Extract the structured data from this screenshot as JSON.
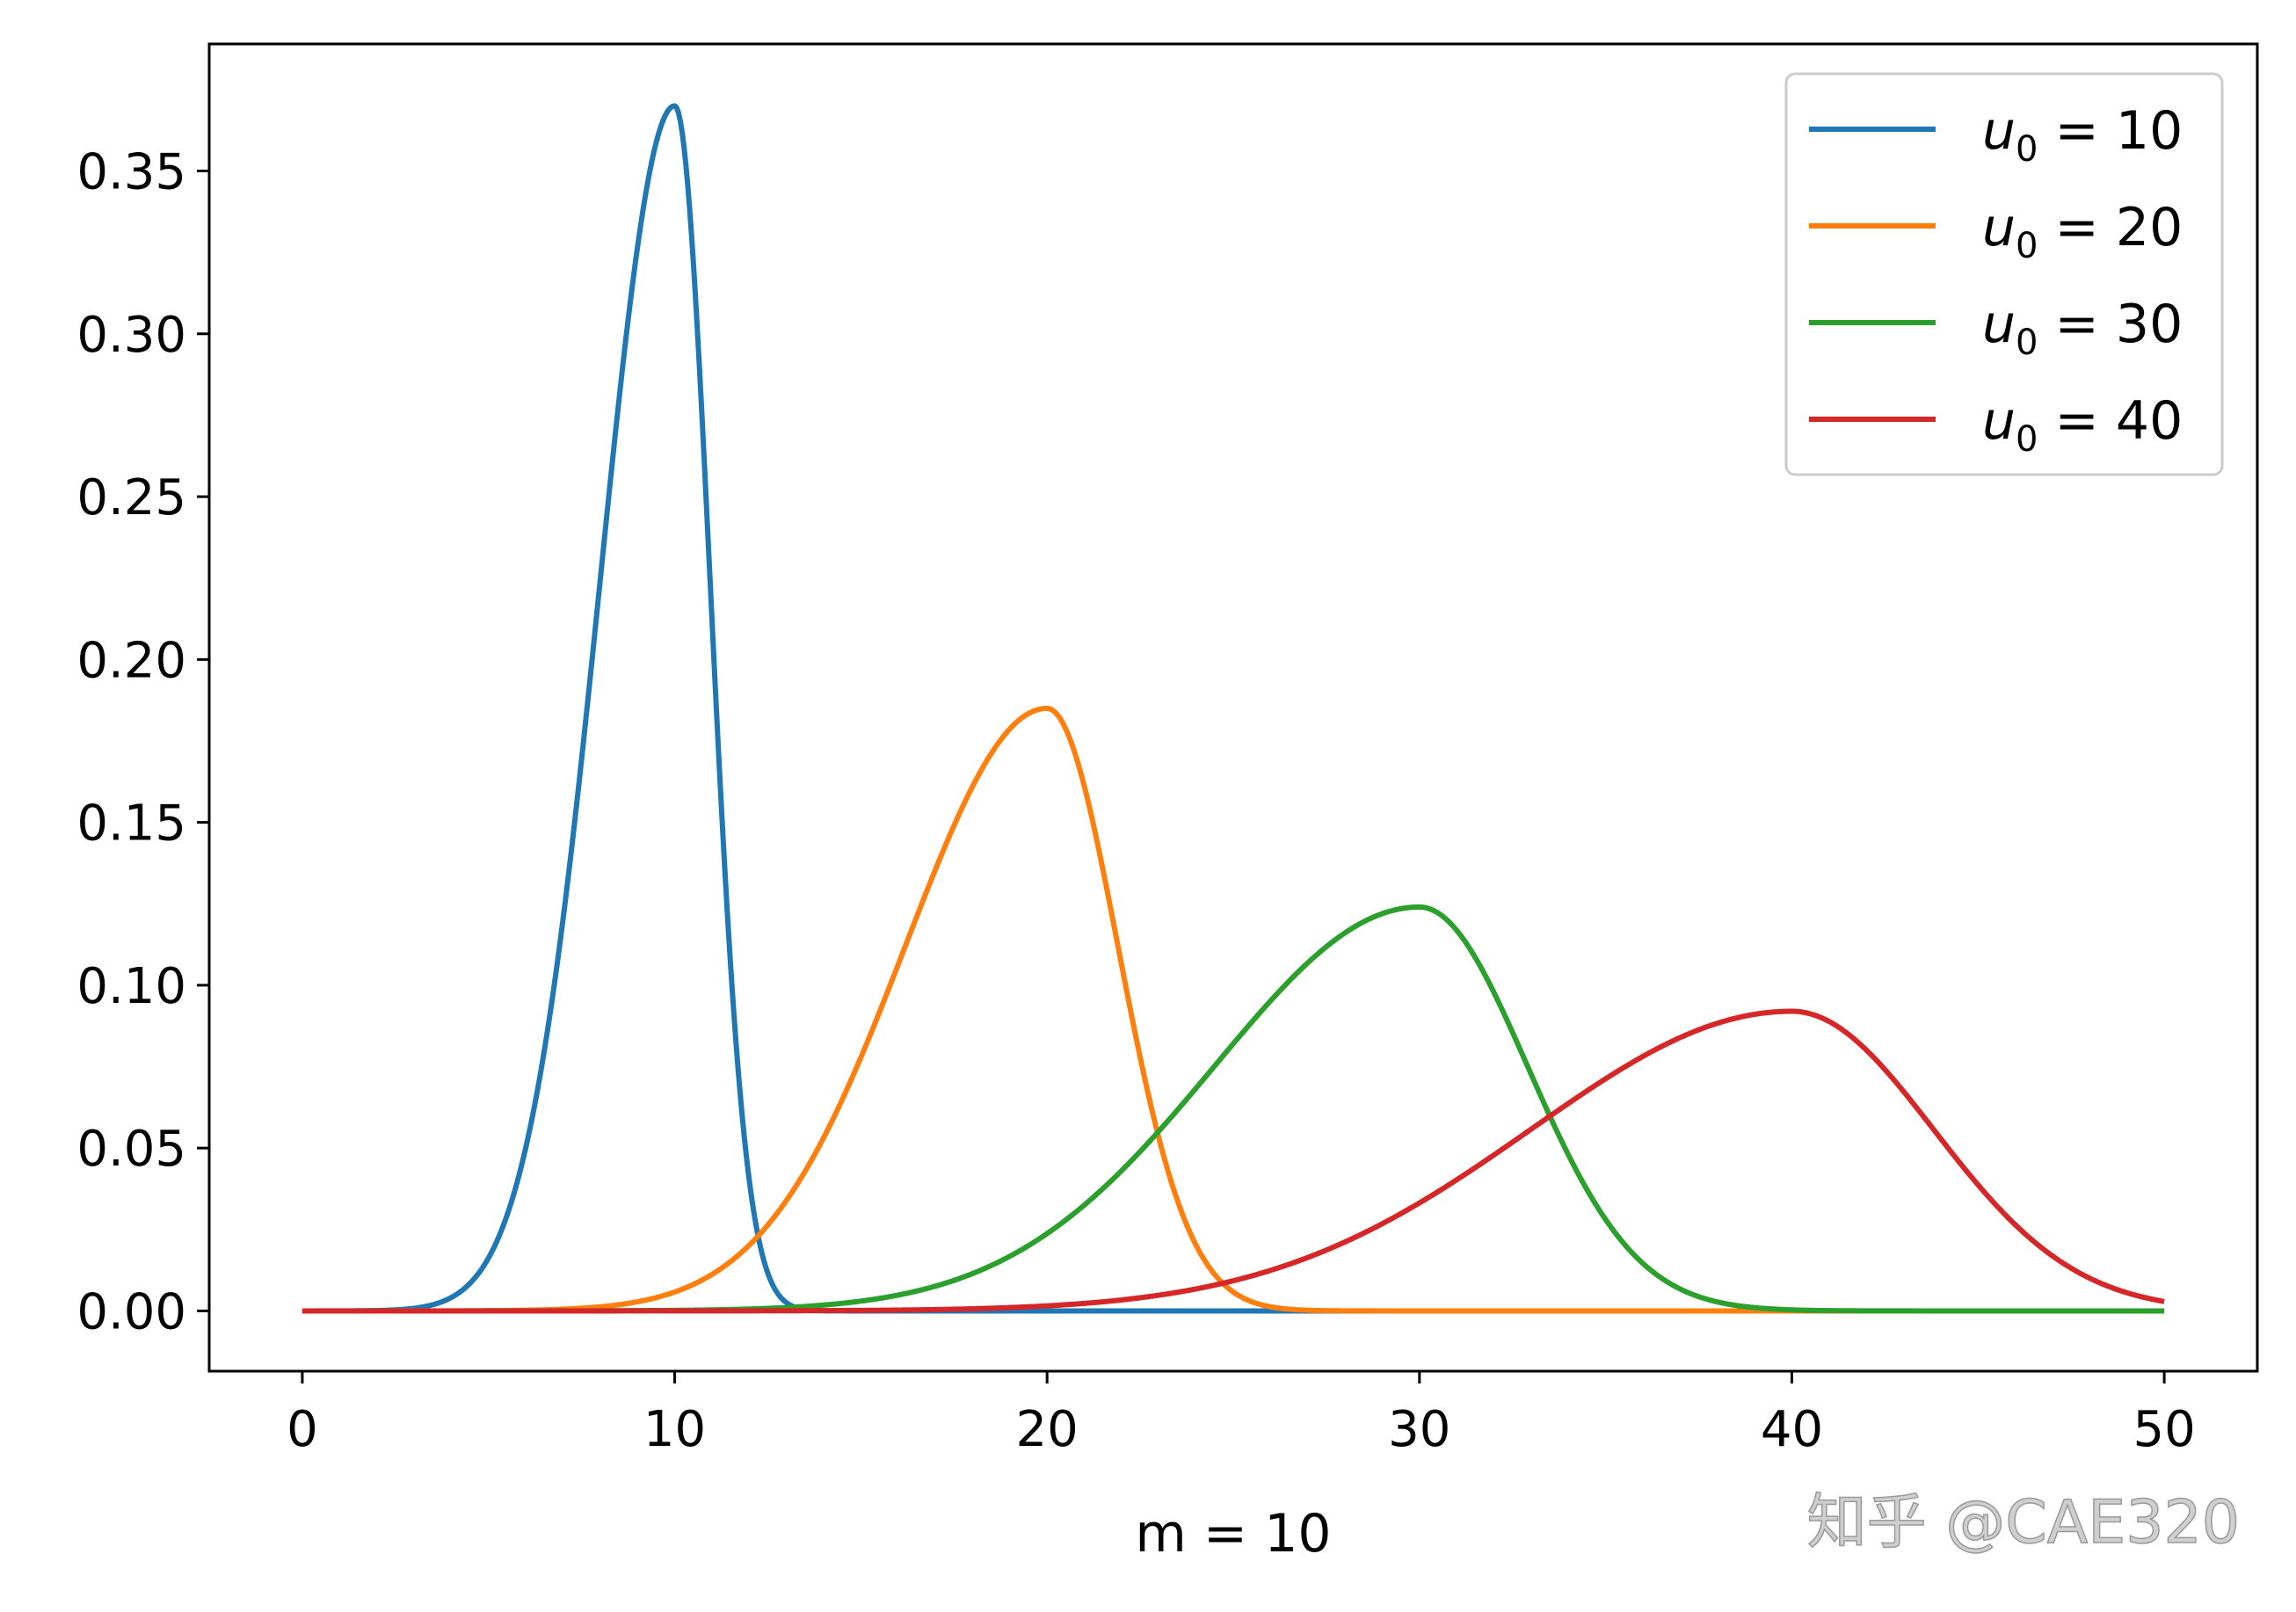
{
  "chart_data": {
    "type": "line",
    "title": "",
    "xlabel": "m = 10",
    "ylabel": "",
    "xlim": [
      -2.5,
      52.5
    ],
    "ylim": [
      -0.0185,
      0.389
    ],
    "x_ticks": [
      0,
      10,
      20,
      30,
      40,
      50
    ],
    "x_tick_labels": [
      "0",
      "10",
      "20",
      "30",
      "40",
      "50"
    ],
    "y_ticks": [
      0.0,
      0.05,
      0.1,
      0.15,
      0.2,
      0.25,
      0.3,
      0.35
    ],
    "y_tick_labels": [
      "0.00",
      "0.05",
      "0.10",
      "0.15",
      "0.20",
      "0.25",
      "0.30",
      "0.35"
    ],
    "grid": false,
    "legend_position": "top-right",
    "series": [
      {
        "name": "u0 = 10",
        "label_main": "u",
        "label_sub": "0",
        "label_rest": " = 10",
        "color": "#1f77b4",
        "peak_x": 10,
        "peak_y": 0.37,
        "left_width": 2.0,
        "right_width": 0.95,
        "x": [
          0,
          4,
          5,
          6,
          7,
          8,
          9,
          10,
          11,
          12,
          13,
          50
        ],
        "y": [
          0.0,
          0.002,
          0.012,
          0.05,
          0.125,
          0.235,
          0.33,
          0.37,
          0.2,
          0.012,
          0.0,
          0.0
        ]
      },
      {
        "name": "u0 = 20",
        "label_main": "u",
        "label_sub": "0",
        "label_rest": " = 20",
        "color": "#ff7f0e",
        "peak_x": 20,
        "peak_y": 0.185,
        "left_width": 3.8,
        "right_width": 1.9,
        "x": [
          0,
          10,
          12,
          14,
          16,
          18,
          20,
          22,
          24,
          26,
          50
        ],
        "y": [
          0.0,
          0.001,
          0.006,
          0.025,
          0.07,
          0.14,
          0.185,
          0.1,
          0.012,
          0.0,
          0.0
        ]
      },
      {
        "name": "u0 = 30",
        "label_main": "u",
        "label_sub": "0",
        "label_rest": " = 30",
        "color": "#2ca02c",
        "peak_x": 30,
        "peak_y": 0.124,
        "left_width": 5.5,
        "right_width": 2.9,
        "x": [
          0,
          15,
          20,
          23,
          26,
          28,
          30,
          32,
          34,
          36,
          38,
          50
        ],
        "y": [
          0.0,
          0.001,
          0.008,
          0.03,
          0.07,
          0.105,
          0.124,
          0.1,
          0.045,
          0.008,
          0.0,
          0.0
        ]
      },
      {
        "name": "u0 = 40",
        "label_main": "u",
        "label_sub": "0",
        "label_rest": " = 40",
        "color": "#d62728",
        "peak_x": 40,
        "peak_y": 0.092,
        "left_width": 7.0,
        "right_width": 3.8,
        "x": [
          0,
          20,
          25,
          30,
          34,
          37,
          40,
          42,
          44,
          46,
          48,
          50
        ],
        "y": [
          0.0,
          0.001,
          0.005,
          0.018,
          0.045,
          0.075,
          0.092,
          0.08,
          0.053,
          0.025,
          0.007,
          0.001
        ]
      }
    ]
  },
  "watermark": "知乎 @CAE320"
}
